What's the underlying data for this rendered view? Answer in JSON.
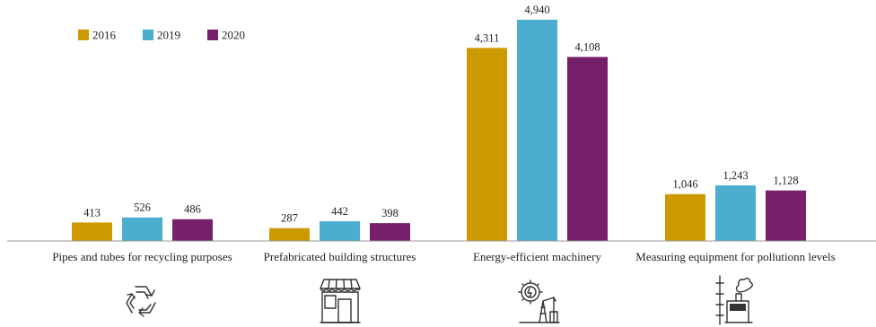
{
  "chart_data": {
    "type": "bar",
    "categories": [
      "Pipes and tubes for recycling purposes",
      "Prefabricated building structures",
      "Energy-efficient machinery",
      "Measuring equipment for pollutionn levels"
    ],
    "series": [
      {
        "name": "2016",
        "values": [
          413,
          287,
          4311,
          1046
        ],
        "labels": [
          "413",
          "287",
          "4,311",
          "1,046"
        ],
        "color": "#CC9900"
      },
      {
        "name": "2019",
        "values": [
          526,
          442,
          4940,
          1243
        ],
        "labels": [
          "526",
          "442",
          "4,940",
          "1,243"
        ],
        "color": "#4BAECE"
      },
      {
        "name": "2020",
        "values": [
          486,
          398,
          4108,
          1128
        ],
        "labels": [
          "486",
          "398",
          "4,108",
          "1,128"
        ],
        "color": "#76206B"
      }
    ],
    "ylim": [
      0,
      5000
    ],
    "grid": false,
    "legend_position": "top-left"
  },
  "icons": [
    "recycle-icon",
    "storefront-icon",
    "energy-machinery-icon",
    "pollution-measuring-icon"
  ]
}
